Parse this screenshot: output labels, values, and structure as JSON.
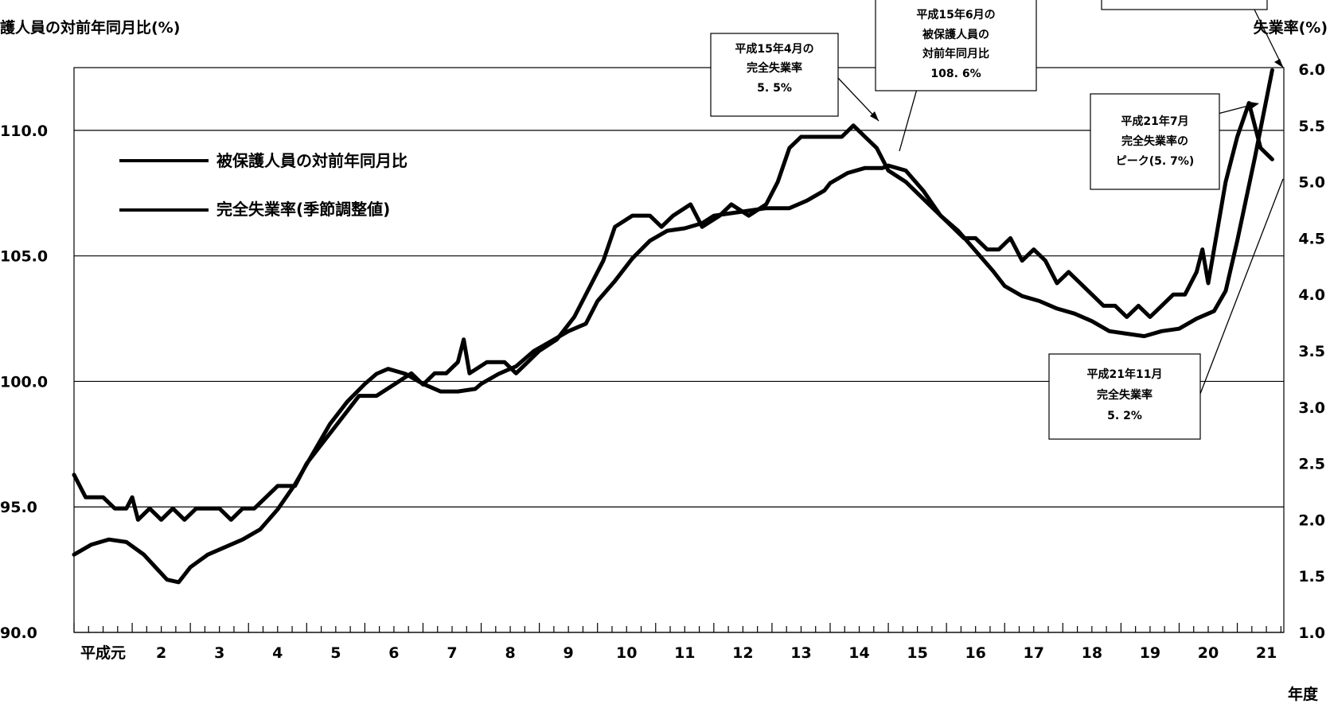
{
  "chart_data": {
    "type": "line",
    "xlabel": "年度",
    "y_left_label": "護人員の対前年同月比(%)",
    "y_right_label": "失業率(%)",
    "x_tick_labels": [
      "平成元",
      "2",
      "3",
      "4",
      "5",
      "6",
      "7",
      "8",
      "9",
      "10",
      "11",
      "12",
      "13",
      "14",
      "15",
      "16",
      "17",
      "18",
      "19",
      "20",
      "21"
    ],
    "y_left_ticks": [
      "90.0",
      "95.0",
      "100.0",
      "105.0",
      "110.0"
    ],
    "y_left_range": [
      90,
      112.5
    ],
    "y_right_ticks": [
      "1.0",
      "1.5",
      "2.0",
      "2.5",
      "3.0",
      "3.5",
      "4.0",
      "4.5",
      "5.0",
      "5.5",
      "6.0"
    ],
    "y_right_range": [
      1.0,
      6.0
    ],
    "grid": "horizontal",
    "legend_position": "upper-left",
    "series": [
      {
        "name": "被保護人員の対前年同月比",
        "axis": "left",
        "values": [
          [
            1.0,
            93.1
          ],
          [
            1.3,
            93.5
          ],
          [
            1.6,
            93.7
          ],
          [
            1.9,
            93.6
          ],
          [
            2.2,
            93.1
          ],
          [
            2.4,
            92.6
          ],
          [
            2.6,
            92.1
          ],
          [
            2.8,
            92.0
          ],
          [
            3.0,
            92.6
          ],
          [
            3.3,
            93.1
          ],
          [
            3.6,
            93.4
          ],
          [
            3.9,
            93.7
          ],
          [
            4.2,
            94.1
          ],
          [
            4.5,
            94.9
          ],
          [
            4.8,
            95.9
          ],
          [
            5.1,
            97.1
          ],
          [
            5.4,
            98.3
          ],
          [
            5.7,
            99.2
          ],
          [
            6.0,
            99.9
          ],
          [
            6.2,
            100.3
          ],
          [
            6.4,
            100.5
          ],
          [
            6.7,
            100.3
          ],
          [
            7.0,
            99.9
          ],
          [
            7.3,
            99.6
          ],
          [
            7.6,
            99.6
          ],
          [
            7.9,
            99.7
          ],
          [
            8.0,
            99.9
          ],
          [
            8.3,
            100.3
          ],
          [
            8.6,
            100.6
          ],
          [
            8.9,
            101.2
          ],
          [
            9.2,
            101.6
          ],
          [
            9.5,
            102.0
          ],
          [
            9.8,
            102.3
          ],
          [
            10.0,
            103.2
          ],
          [
            10.3,
            104.0
          ],
          [
            10.6,
            104.9
          ],
          [
            10.9,
            105.6
          ],
          [
            11.2,
            106.0
          ],
          [
            11.5,
            106.1
          ],
          [
            11.8,
            106.3
          ],
          [
            12.0,
            106.6
          ],
          [
            12.3,
            106.7
          ],
          [
            12.6,
            106.8
          ],
          [
            12.9,
            106.9
          ],
          [
            13.0,
            106.9
          ],
          [
            13.3,
            106.9
          ],
          [
            13.6,
            107.2
          ],
          [
            13.9,
            107.6
          ],
          [
            14.0,
            107.9
          ],
          [
            14.3,
            108.3
          ],
          [
            14.6,
            108.5
          ],
          [
            14.9,
            108.5
          ],
          [
            15.0,
            108.6
          ],
          [
            15.3,
            108.4
          ],
          [
            15.6,
            107.6
          ],
          [
            15.9,
            106.6
          ],
          [
            16.2,
            106.0
          ],
          [
            16.5,
            105.2
          ],
          [
            16.8,
            104.4
          ],
          [
            17.0,
            103.8
          ],
          [
            17.3,
            103.4
          ],
          [
            17.6,
            103.2
          ],
          [
            17.9,
            102.9
          ],
          [
            18.2,
            102.7
          ],
          [
            18.5,
            102.4
          ],
          [
            18.8,
            102.0
          ],
          [
            19.1,
            101.9
          ],
          [
            19.4,
            101.8
          ],
          [
            19.7,
            102.0
          ],
          [
            20.0,
            102.1
          ],
          [
            20.3,
            102.5
          ],
          [
            20.6,
            102.8
          ],
          [
            20.8,
            103.6
          ],
          [
            21.0,
            105.6
          ],
          [
            21.3,
            108.9
          ],
          [
            21.6,
            112.4
          ]
        ]
      },
      {
        "name": "完全失業率(季節調整値)",
        "axis": "right",
        "values": [
          [
            1.0,
            2.4
          ],
          [
            1.2,
            2.2
          ],
          [
            1.5,
            2.2
          ],
          [
            1.7,
            2.1
          ],
          [
            1.9,
            2.1
          ],
          [
            2.0,
            2.2
          ],
          [
            2.1,
            2.0
          ],
          [
            2.3,
            2.1
          ],
          [
            2.5,
            2.0
          ],
          [
            2.7,
            2.1
          ],
          [
            2.9,
            2.0
          ],
          [
            3.1,
            2.1
          ],
          [
            3.3,
            2.1
          ],
          [
            3.5,
            2.1
          ],
          [
            3.7,
            2.0
          ],
          [
            3.9,
            2.1
          ],
          [
            4.1,
            2.1
          ],
          [
            4.3,
            2.2
          ],
          [
            4.5,
            2.3
          ],
          [
            4.8,
            2.3
          ],
          [
            5.0,
            2.5
          ],
          [
            5.3,
            2.7
          ],
          [
            5.6,
            2.9
          ],
          [
            5.9,
            3.1
          ],
          [
            6.2,
            3.1
          ],
          [
            6.5,
            3.2
          ],
          [
            6.8,
            3.3
          ],
          [
            7.0,
            3.2
          ],
          [
            7.2,
            3.3
          ],
          [
            7.4,
            3.3
          ],
          [
            7.6,
            3.4
          ],
          [
            7.7,
            3.6
          ],
          [
            7.8,
            3.3
          ],
          [
            8.1,
            3.4
          ],
          [
            8.4,
            3.4
          ],
          [
            8.6,
            3.3
          ],
          [
            8.8,
            3.4
          ],
          [
            9.0,
            3.5
          ],
          [
            9.3,
            3.6
          ],
          [
            9.6,
            3.8
          ],
          [
            9.9,
            4.1
          ],
          [
            10.1,
            4.3
          ],
          [
            10.3,
            4.6
          ],
          [
            10.6,
            4.7
          ],
          [
            10.9,
            4.7
          ],
          [
            11.1,
            4.6
          ],
          [
            11.3,
            4.7
          ],
          [
            11.6,
            4.8
          ],
          [
            11.8,
            4.6
          ],
          [
            12.1,
            4.7
          ],
          [
            12.3,
            4.8
          ],
          [
            12.6,
            4.7
          ],
          [
            12.9,
            4.8
          ],
          [
            13.1,
            5.0
          ],
          [
            13.3,
            5.3
          ],
          [
            13.5,
            5.4
          ],
          [
            13.8,
            5.4
          ],
          [
            14.0,
            5.4
          ],
          [
            14.2,
            5.4
          ],
          [
            14.4,
            5.5
          ],
          [
            14.6,
            5.4
          ],
          [
            14.8,
            5.3
          ],
          [
            15.0,
            5.1
          ],
          [
            15.3,
            5.0
          ],
          [
            15.5,
            4.9
          ],
          [
            15.7,
            4.8
          ],
          [
            15.9,
            4.7
          ],
          [
            16.1,
            4.6
          ],
          [
            16.3,
            4.5
          ],
          [
            16.5,
            4.5
          ],
          [
            16.7,
            4.4
          ],
          [
            16.9,
            4.4
          ],
          [
            17.1,
            4.5
          ],
          [
            17.3,
            4.3
          ],
          [
            17.5,
            4.4
          ],
          [
            17.7,
            4.3
          ],
          [
            17.9,
            4.1
          ],
          [
            18.1,
            4.2
          ],
          [
            18.3,
            4.1
          ],
          [
            18.5,
            4.0
          ],
          [
            18.7,
            3.9
          ],
          [
            18.9,
            3.9
          ],
          [
            19.1,
            3.8
          ],
          [
            19.3,
            3.9
          ],
          [
            19.5,
            3.8
          ],
          [
            19.7,
            3.9
          ],
          [
            19.9,
            4.0
          ],
          [
            20.1,
            4.0
          ],
          [
            20.3,
            4.2
          ],
          [
            20.4,
            4.4
          ],
          [
            20.5,
            4.1
          ],
          [
            20.8,
            5.0
          ],
          [
            21.0,
            5.4
          ],
          [
            21.2,
            5.7
          ],
          [
            21.4,
            5.3
          ],
          [
            21.6,
            5.2
          ]
        ]
      }
    ],
    "annotations": [
      {
        "lines": [
          "平成15年4月の",
          "完全失業率",
          "5. 5%"
        ]
      },
      {
        "lines": [
          "平成15年6月の",
          "被保護人員の",
          "対前年同月比",
          "108. 6%"
        ]
      },
      {
        "lines": [
          "平成21年7月",
          "完全失業率の",
          "ピーク(5. 7%)"
        ]
      },
      {
        "lines": [
          "平成21年11月",
          "完全失業率",
          "5. 2%"
        ]
      }
    ],
    "color": "#000000"
  }
}
